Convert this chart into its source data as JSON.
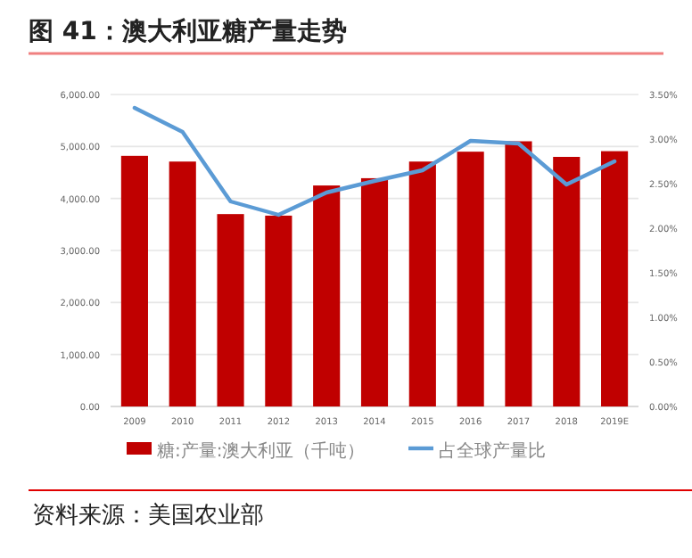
{
  "chart_data": {
    "type": "bar",
    "title": "图 41：澳大利亚糖产量走势",
    "categories": [
      "2009",
      "2010",
      "2011",
      "2012",
      "2013",
      "2014",
      "2015",
      "2016",
      "2017",
      "2018",
      "2019E"
    ],
    "series": [
      {
        "name": "糖:产量:澳大利亚（千吨）",
        "color": "#c00000",
        "values": [
          4820,
          4710,
          3700,
          3670,
          4250,
          4390,
          4710,
          4900,
          5100,
          4800,
          4910
        ]
      },
      {
        "name": "占全球产量比",
        "type": "line",
        "axis": "y2",
        "color": "#5b9bd5",
        "values": [
          3.35,
          3.08,
          2.3,
          2.15,
          2.4,
          2.53,
          2.65,
          2.98,
          2.95,
          2.49,
          2.75
        ]
      }
    ],
    "ylim": [
      0,
      6000
    ],
    "yticks": [
      {
        "value": 0,
        "label": "0.00"
      },
      {
        "value": 1000,
        "label": "1,000.00"
      },
      {
        "value": 2000,
        "label": "2,000.00"
      },
      {
        "value": 3000,
        "label": "3,000.00"
      },
      {
        "value": 4000,
        "label": "4,000.00"
      },
      {
        "value": 5000,
        "label": "5,000.00"
      },
      {
        "value": 6000,
        "label": "6,000.00"
      }
    ],
    "y2lim": [
      0,
      3.5
    ],
    "y2ticks": [
      {
        "value": 0,
        "label": "0.00%"
      },
      {
        "value": 0.5,
        "label": "0.50%"
      },
      {
        "value": 1,
        "label": "1.00%"
      },
      {
        "value": 1.5,
        "label": "1.50%"
      },
      {
        "value": 2,
        "label": "2.00%"
      },
      {
        "value": 2.5,
        "label": "2.50%"
      },
      {
        "value": 3,
        "label": "3.00%"
      },
      {
        "value": 3.5,
        "label": "3.50%"
      }
    ],
    "grid": "y",
    "legend": "bottom",
    "annotations": [
      "资料来源：美国农业部"
    ]
  }
}
